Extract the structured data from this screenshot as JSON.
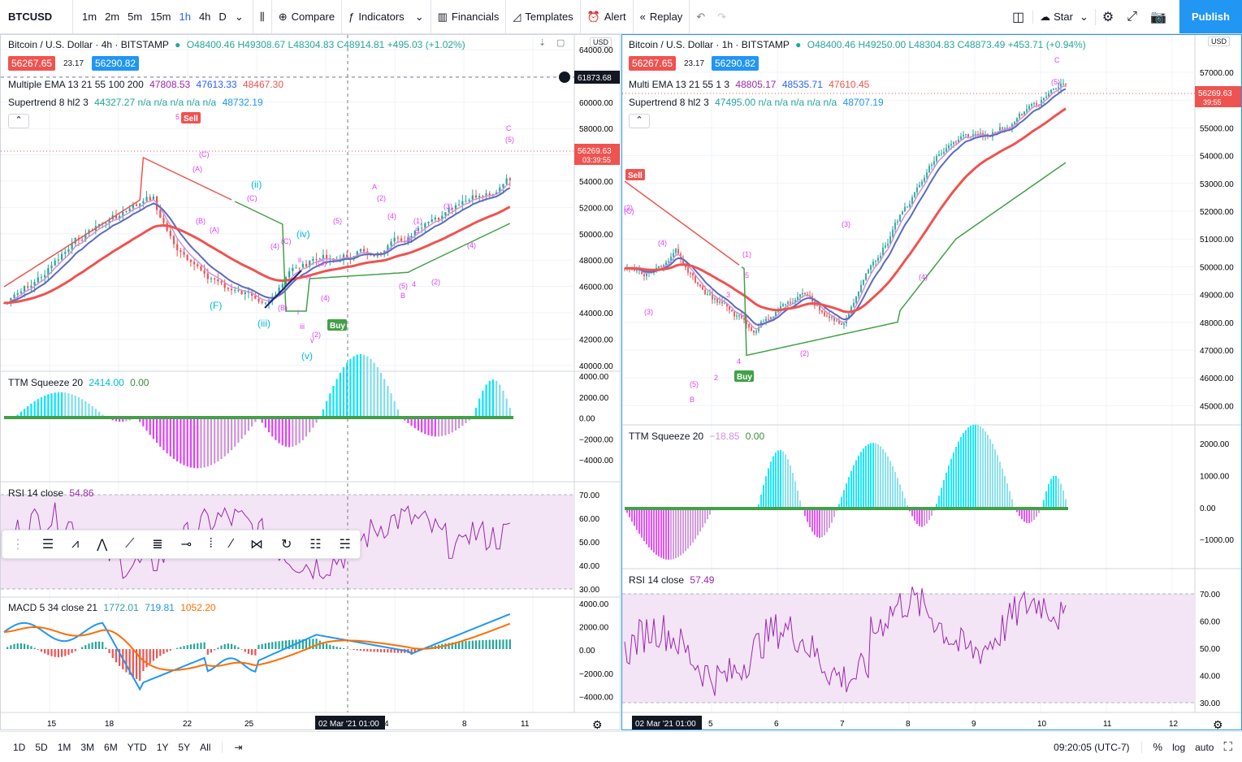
{
  "toolbar": {
    "symbol": "BTCUSD",
    "intervals": [
      "1m",
      "2m",
      "5m",
      "15m",
      "1h",
      "4h",
      "D"
    ],
    "compare": "Compare",
    "indicators": "Indicators",
    "financials": "Financials",
    "templates": "Templates",
    "alert": "Alert",
    "replay": "Replay",
    "star": "Star",
    "publish": "Publish"
  },
  "left": {
    "title": "Bitcoin / U.S. Dollar · 4h · BITSTAMP",
    "ohlc": "O48400.46 H49308.67 L48304.83 C48914.81 +495.03 (+1.02%)",
    "bid": "56267.65",
    "spread": "23.17",
    "ask": "56290.82",
    "ema_name": "Multiple EMA 13 21 55 100 200",
    "ema_vals": [
      "47808.53",
      "47613.33",
      "48467.30"
    ],
    "st_name": "Supertrend 8 hl2 3",
    "st_vals": "44327.27 n/a n/a n/a n/a n/a",
    "st_last": "48732.19",
    "currency": "USD",
    "crosshair": "61873.68",
    "last_price": "56269.63",
    "last_time": "03:39:55",
    "price_ticks": [
      "64000.00",
      "62000.00",
      "60000.00",
      "58000.00",
      "56000.00",
      "54000.00",
      "52000.00",
      "50000.00",
      "48000.00",
      "46000.00",
      "44000.00",
      "42000.00",
      "40000.00"
    ],
    "ttm_name": "TTM Squeeze 20",
    "ttm_vals": [
      "2414.00",
      "0.00"
    ],
    "ttm_ticks": [
      "4000.00",
      "2000.00",
      "0.00",
      "−2000.00",
      "−4000.00"
    ],
    "rsi_name": "RSI 14 close",
    "rsi_val": "54.86",
    "rsi_ticks": [
      "70.00",
      "60.00",
      "50.00",
      "40.00",
      "30.00"
    ],
    "macd_name": "MACD 5 34 close 21",
    "macd_vals": [
      "1772.01",
      "719.81",
      "1052.20"
    ],
    "macd_ticks": [
      "4000.00",
      "2000.00",
      "0.00",
      "−2000.00",
      "−4000.00"
    ],
    "x_ticks": [
      "15",
      "18",
      "22",
      "25",
      "4",
      "8",
      "11"
    ],
    "x_cursor": "02 Mar '21   01:00",
    "labels": {
      "sell": "Sell",
      "buy": "Buy"
    },
    "waves": [
      "5",
      "(C)",
      "(A)",
      "(B)",
      "(C)",
      "(A)",
      "(B)",
      "(ii)",
      "(iii)",
      "(iv)",
      "(v)",
      "i",
      "ii",
      "iii",
      "iv",
      "v",
      "(B)",
      "(A)",
      "(C)",
      "(4)",
      "(2)",
      "(3)",
      "(1)",
      "(5)",
      "1",
      "2",
      "3",
      "4",
      "5",
      "(5)",
      "C",
      "B",
      "A",
      "(2)",
      "(4)",
      "(1)",
      "(3)",
      "(5)",
      "(4)",
      "(5)",
      "(3)",
      "(1)",
      "3",
      "4",
      "5",
      "(2)"
    ]
  },
  "right": {
    "title": "Bitcoin / U.S. Dollar · 1h · BITSTAMP",
    "ohlc": "O48400.46 H49250.00 L48304.83 C48873.49 +453.71 (+0.94%)",
    "bid": "56267.65",
    "spread": "23.17",
    "ask": "56290.82",
    "ema_name": "Multi EMA 13 21 55 1 3",
    "ema_vals": [
      "48805.17",
      "48535.71",
      "47610.45"
    ],
    "st_name": "Supertrend 8 hl2 3",
    "st_vals": "47495.00 n/a n/a n/a n/a n/a",
    "st_last": "48707.19",
    "currency": "USD",
    "last_price": "56269.63",
    "last_time": "39:55",
    "price_ticks": [
      "57000.00",
      "56000.00",
      "55000.00",
      "54000.00",
      "53000.00",
      "52000.00",
      "51000.00",
      "50000.00",
      "49000.00",
      "48000.00",
      "47000.00",
      "46000.00",
      "45000.00"
    ],
    "ttm_name": "TTM Squeeze 20",
    "ttm_vals": [
      "−18.85",
      "0.00"
    ],
    "ttm_ticks": [
      "2000.00",
      "1000.00",
      "0.00",
      "−1000.00"
    ],
    "rsi_name": "RSI 14 close",
    "rsi_val": "57.49",
    "rsi_ticks": [
      "70.00",
      "60.00",
      "50.00",
      "40.00",
      "30.00"
    ],
    "x_ticks": [
      "5",
      "6",
      "7",
      "8",
      "9",
      "10",
      "11",
      "12"
    ],
    "x_cursor": "02 Mar '21   01:00",
    "labels": {
      "sell": "Sell",
      "buy": "Buy"
    }
  },
  "bottom": {
    "ranges": [
      "1D",
      "5D",
      "1M",
      "3M",
      "6M",
      "YTD",
      "1Y",
      "5Y",
      "All"
    ],
    "clock": "09:20:05 (UTC-7)",
    "pct": "%",
    "log": "log",
    "auto": "auto"
  },
  "colors": {
    "red": "#ef5350",
    "green": "#26a69a",
    "blue": "#2962ff",
    "violet": "#9c27b0",
    "magenta": "#e040fb",
    "cyan": "#00bcd4",
    "rsi_bg": "#f3e5f5"
  }
}
